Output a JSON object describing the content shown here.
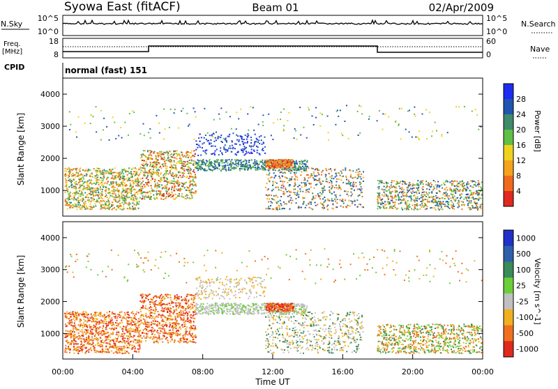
{
  "header": {
    "station": "Syowa East (fitACF)",
    "beam": "Beam 01",
    "date": "02/Apr/2009"
  },
  "side_labels": {
    "nsky": "N.Sky",
    "nsearch": "N.Search",
    "freq_line1": "Freq.",
    "freq_line2": "[MHz]",
    "nave": "Nave",
    "cpid": "CPID",
    "cpid_value": "normal (fast) 151"
  },
  "noise_axis": {
    "top": "10^5",
    "bottom": "10^0"
  },
  "freq_axis": {
    "left_top": "18",
    "left_bottom": "8",
    "right_top": "60",
    "right_bottom": "0"
  },
  "chart_data": [
    {
      "type": "heatmap",
      "name": "power",
      "ylabel": "Slant Range [km]",
      "yticks": [
        1000,
        2000,
        3000,
        4000
      ],
      "ylim": [
        200,
        4500
      ],
      "colorbar": {
        "label": "Power [dB]",
        "ticks": [
          "4",
          "8",
          "12",
          "16",
          "20",
          "24",
          "28"
        ],
        "colors": [
          "#1d2cf0",
          "#1f55b0",
          "#3e8a6b",
          "#5fbf46",
          "#f0d21e",
          "#f5a21e",
          "#f06a1e",
          "#e0281e"
        ]
      }
    },
    {
      "type": "heatmap",
      "name": "velocity",
      "ylabel": "Slant Range [km]",
      "yticks": [
        1000,
        2000,
        3000,
        4000
      ],
      "ylim": [
        200,
        4500
      ],
      "colorbar": {
        "label": "Velocity [m s^-1]",
        "ticks": [
          "1000",
          "500",
          "100",
          "25",
          "-25",
          "-100",
          "-500",
          "-1000"
        ],
        "colors": [
          "#2030c8",
          "#2f5fa8",
          "#3a8a5a",
          "#6ccf3a",
          "#c0c0c0",
          "#f0b020",
          "#f07020",
          "#e02a1c"
        ]
      }
    }
  ],
  "xaxis": {
    "label": "Time UT",
    "ticks": [
      "00:00",
      "04:00",
      "08:00",
      "12:00",
      "16:00",
      "20:00",
      "00:00"
    ]
  }
}
